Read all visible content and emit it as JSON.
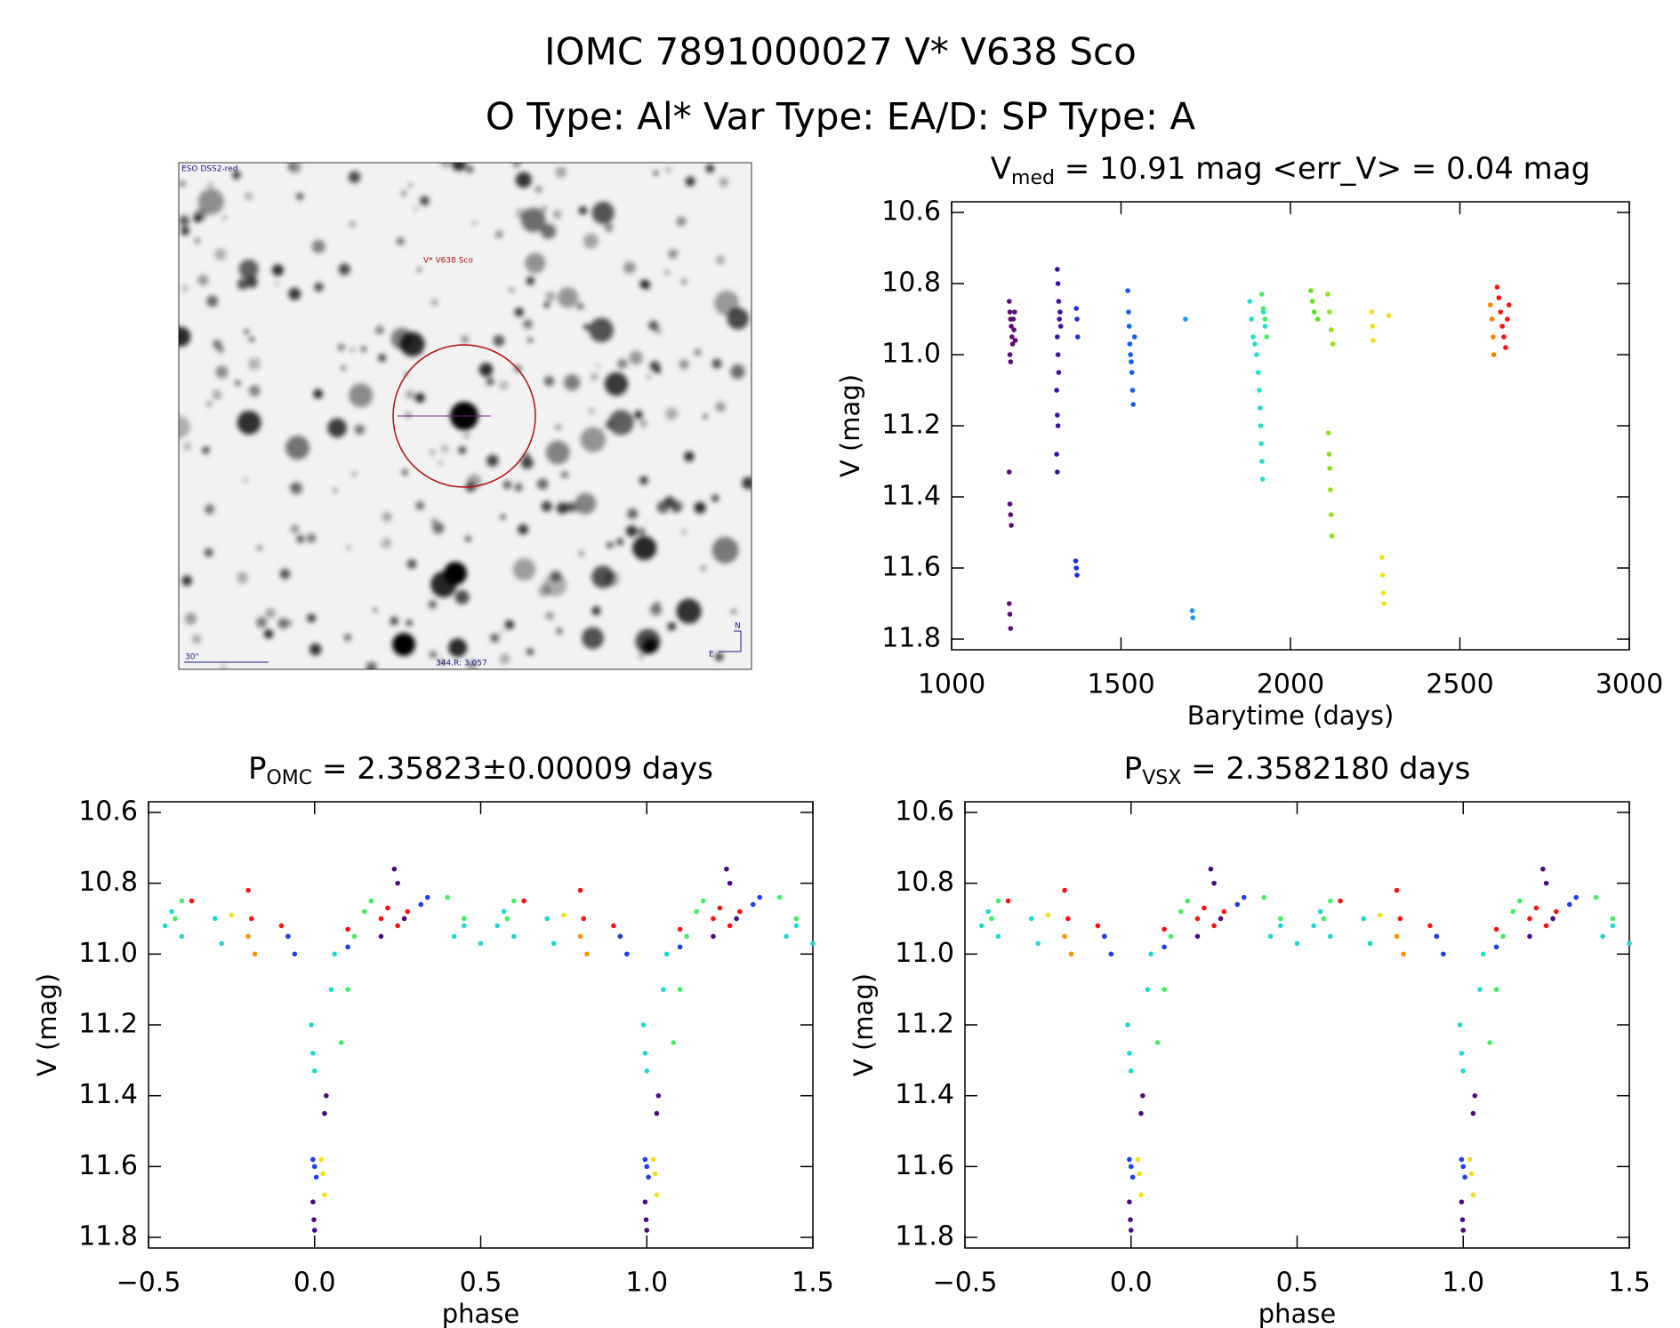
{
  "header": {
    "title": "IOMC 7891000027   V* V638 Sco",
    "subtitle": "O Type: Al*  Var Type: EA/D:  SP Type: A"
  },
  "image": {
    "survey": "ESO DSS2-red",
    "target": "V* V638 Sco",
    "scale": "30\"",
    "coords": "344.R: 3.057",
    "north": "N",
    "east": "E"
  },
  "chart_data": [
    {
      "type": "scatter",
      "title": [
        "V",
        "med",
        " = 10.91 mag <err_V> = 0.04 mag"
      ],
      "xlabel": "Barytime (days)",
      "ylabel": "V (mag)",
      "xlim": [
        1000,
        3000
      ],
      "xticks": [
        1000,
        1500,
        2000,
        2500,
        3000
      ],
      "ylim": [
        10.57,
        11.83
      ],
      "y_reversed": true,
      "yticks": [
        10.6,
        10.8,
        {
          "value": 11,
          "label": "11.0"
        },
        11.2,
        11.4,
        11.6,
        11.8
      ],
      "series": [
        {
          "color": "#5a0a7a",
          "x": [
            1170,
            1172,
            1174,
            1176,
            1178,
            1180,
            1172,
            1182,
            1184,
            1174,
            1170,
            1172,
            1174,
            1176,
            1170,
            1172,
            1174,
            1186,
            1188
          ],
          "y": [
            10.85,
            10.88,
            10.9,
            10.92,
            10.95,
            10.97,
            11.0,
            10.9,
            10.93,
            11.02,
            11.33,
            11.42,
            11.45,
            11.48,
            11.7,
            11.73,
            11.77,
            10.88,
            10.96
          ]
        },
        {
          "color": "#3a10a0",
          "x": [
            1312,
            1314,
            1316,
            1318,
            1312,
            1314,
            1316,
            1310,
            1312,
            1314,
            1310,
            1312,
            1320,
            1322
          ],
          "y": [
            10.76,
            10.8,
            10.85,
            10.9,
            10.95,
            11.0,
            11.05,
            11.1,
            11.17,
            11.2,
            11.28,
            11.33,
            10.88,
            10.92
          ]
        },
        {
          "color": "#1a30e0",
          "x": [
            1368,
            1370,
            1372,
            1366,
            1368,
            1370
          ],
          "y": [
            10.87,
            10.9,
            10.95,
            11.58,
            11.6,
            11.62
          ]
        },
        {
          "color": "#1060f0",
          "x": [
            1520,
            1522,
            1524,
            1526,
            1528,
            1530,
            1532,
            1534,
            1536,
            1540
          ],
          "y": [
            10.82,
            10.88,
            10.92,
            10.97,
            11.0,
            11.02,
            11.05,
            11.1,
            11.14,
            10.95
          ]
        },
        {
          "color": "#1e90ff",
          "x": [
            1690,
            1710,
            1712
          ],
          "y": [
            10.9,
            11.72,
            11.74
          ]
        },
        {
          "color": "#20e0c8",
          "x": [
            1880,
            1885,
            1890,
            1895,
            1900,
            1905,
            1908,
            1910,
            1912,
            1914,
            1916,
            1918,
            1920,
            1925
          ],
          "y": [
            10.85,
            10.9,
            10.95,
            10.97,
            11.0,
            11.05,
            11.1,
            11.15,
            11.2,
            11.25,
            11.3,
            11.35,
            10.88,
            10.92
          ]
        },
        {
          "color": "#40f060",
          "x": [
            1915,
            1920,
            1925,
            1930
          ],
          "y": [
            10.83,
            10.87,
            10.9,
            10.95
          ]
        },
        {
          "color": "#60e020",
          "x": [
            2060,
            2065,
            2070,
            2080
          ],
          "y": [
            10.82,
            10.85,
            10.88,
            10.9
          ]
        },
        {
          "color": "#90e020",
          "x": [
            2110,
            2115,
            2120,
            2125,
            2112,
            2114,
            2116,
            2118,
            2120,
            2122
          ],
          "y": [
            10.83,
            10.88,
            10.93,
            10.97,
            11.22,
            11.28,
            11.32,
            11.38,
            11.45,
            11.51
          ]
        },
        {
          "color": "#f0e020",
          "x": [
            2240,
            2242,
            2244,
            2270,
            2272,
            2274,
            2276,
            2290
          ],
          "y": [
            10.88,
            10.92,
            10.96,
            11.57,
            11.62,
            11.67,
            11.7,
            10.89
          ]
        },
        {
          "color": "#ff8000",
          "x": [
            2590,
            2595,
            2598,
            2600
          ],
          "y": [
            10.86,
            10.9,
            10.95,
            11.0
          ]
        },
        {
          "color": "#ff1010",
          "x": [
            2610,
            2615,
            2620,
            2625,
            2630,
            2635,
            2640,
            2645
          ],
          "y": [
            10.81,
            10.84,
            10.88,
            10.92,
            10.95,
            10.98,
            10.9,
            10.86
          ]
        }
      ]
    },
    {
      "type": "scatter",
      "title": [
        "P",
        "OMC",
        " = 2.35823±0.00009 days"
      ],
      "xlabel": "phase",
      "ylabel": "V (mag)",
      "xlim": [
        -0.5,
        1.5
      ],
      "xticks": [
        {
          "value": -0.5,
          "label": "−0.5"
        },
        {
          "value": 0,
          "label": "0.0"
        },
        0.5,
        {
          "value": 1,
          "label": "1.0"
        },
        1.5
      ],
      "ylim": [
        10.57,
        11.83
      ],
      "y_reversed": true,
      "yticks": [
        10.6,
        10.8,
        {
          "value": 11,
          "label": "11.0"
        },
        11.2,
        11.4,
        11.6,
        11.8
      ],
      "series": [
        {
          "color": "#20d8d0",
          "x": [
            -0.45,
            -0.43,
            -0.4,
            -0.3,
            -0.28,
            -0.01,
            -0.005,
            0,
            0.05,
            0.06,
            0.42,
            0.45,
            0.5,
            0.55,
            0.57,
            0.6,
            0.7,
            0.72,
            0.99,
            0.995,
            1,
            1.05,
            1.06,
            1.42,
            1.45,
            1.5
          ],
          "y": [
            10.92,
            10.88,
            10.95,
            10.9,
            10.97,
            11.2,
            11.28,
            11.33,
            11.1,
            11,
            10.95,
            10.92,
            10.97,
            10.92,
            10.88,
            10.95,
            10.9,
            10.97,
            11.2,
            11.28,
            11.33,
            11.1,
            11,
            10.95,
            10.92,
            10.97
          ]
        },
        {
          "color": "#40f060",
          "x": [
            -0.42,
            -0.4,
            0.08,
            0.1,
            0.12,
            0.15,
            0.17,
            0.4,
            0.45,
            0.58,
            0.6,
            1.08,
            1.1,
            1.12,
            1.15,
            1.17,
            1.4,
            1.45
          ],
          "y": [
            10.9,
            10.85,
            11.25,
            11.1,
            10.95,
            10.88,
            10.85,
            10.84,
            10.9,
            10.9,
            10.85,
            11.25,
            11.1,
            10.95,
            10.88,
            10.85,
            10.84,
            10.9
          ]
        },
        {
          "color": "#ff1010",
          "x": [
            -0.37,
            -0.2,
            -0.19,
            -0.1,
            -0.08,
            0.1,
            0.2,
            0.22,
            0.25,
            0.28,
            0.63,
            0.8,
            0.81,
            0.9,
            0.92,
            1.1,
            1.2,
            1.22,
            1.25,
            1.28
          ],
          "y": [
            10.85,
            10.82,
            10.9,
            10.92,
            10.95,
            10.93,
            10.9,
            10.87,
            10.92,
            10.88,
            10.85,
            10.82,
            10.9,
            10.92,
            10.95,
            10.93,
            10.9,
            10.87,
            10.92,
            10.88
          ]
        },
        {
          "color": "#1a40f0",
          "x": [
            -0.08,
            -0.06,
            -0.005,
            0,
            0.005,
            0.1,
            0.32,
            0.34,
            0.92,
            0.94,
            0.995,
            1,
            1.005,
            1.1,
            1.32,
            1.34
          ],
          "y": [
            10.95,
            11,
            11.58,
            11.6,
            11.63,
            10.98,
            10.86,
            10.84,
            10.95,
            11,
            11.58,
            11.6,
            11.63,
            10.98,
            10.86,
            10.84
          ]
        },
        {
          "color": "#4a0a80",
          "x": [
            -0.005,
            -0.002,
            0,
            0.03,
            0.035,
            0.2,
            0.24,
            0.25,
            0.27,
            0.995,
            0.998,
            1,
            1.03,
            1.035,
            1.2,
            1.24,
            1.25,
            1.27
          ],
          "y": [
            11.7,
            11.75,
            11.78,
            11.45,
            11.4,
            10.95,
            10.76,
            10.8,
            10.9,
            11.7,
            11.75,
            11.78,
            11.45,
            11.4,
            10.95,
            10.76,
            10.8,
            10.9
          ]
        },
        {
          "color": "#f0e020",
          "x": [
            0.02,
            0.025,
            0.03,
            -0.25,
            1.02,
            1.025,
            1.03,
            0.75
          ],
          "y": [
            11.58,
            11.62,
            11.68,
            10.89,
            11.58,
            11.62,
            11.68,
            10.89
          ]
        },
        {
          "color": "#ff9000",
          "x": [
            -0.2,
            -0.18,
            0.8,
            0.82
          ],
          "y": [
            10.95,
            11,
            10.95,
            11
          ]
        }
      ]
    },
    {
      "type": "scatter",
      "title": [
        "P",
        "VSX",
        " = 2.3582180 days"
      ],
      "xlabel": "phase",
      "ylabel": "V (mag)",
      "xlim": [
        -0.5,
        1.5
      ],
      "xticks": [
        {
          "value": -0.5,
          "label": "−0.5"
        },
        {
          "value": 0,
          "label": "0.0"
        },
        0.5,
        {
          "value": 1,
          "label": "1.0"
        },
        1.5
      ],
      "ylim": [
        10.57,
        11.83
      ],
      "y_reversed": true,
      "yticks": [
        10.6,
        10.8,
        {
          "value": 11,
          "label": "11.0"
        },
        11.2,
        11.4,
        11.6,
        11.8
      ],
      "series": [
        {
          "color": "#20d8d0",
          "x": [
            -0.45,
            -0.43,
            -0.4,
            -0.3,
            -0.28,
            -0.01,
            -0.005,
            0,
            0.05,
            0.06,
            0.42,
            0.45,
            0.5,
            0.55,
            0.57,
            0.6,
            0.7,
            0.72,
            0.99,
            0.995,
            1,
            1.05,
            1.06,
            1.42,
            1.45,
            1.5
          ],
          "y": [
            10.92,
            10.88,
            10.95,
            10.9,
            10.97,
            11.2,
            11.28,
            11.33,
            11.1,
            11,
            10.95,
            10.92,
            10.97,
            10.92,
            10.88,
            10.95,
            10.9,
            10.97,
            11.2,
            11.28,
            11.33,
            11.1,
            11,
            10.95,
            10.92,
            10.97
          ]
        },
        {
          "color": "#40f060",
          "x": [
            -0.42,
            -0.4,
            0.08,
            0.1,
            0.12,
            0.15,
            0.17,
            0.4,
            0.45,
            0.58,
            0.6,
            1.08,
            1.1,
            1.12,
            1.15,
            1.17,
            1.4,
            1.45
          ],
          "y": [
            10.9,
            10.85,
            11.25,
            11.1,
            10.95,
            10.88,
            10.85,
            10.84,
            10.9,
            10.9,
            10.85,
            11.25,
            11.1,
            10.95,
            10.88,
            10.85,
            10.84,
            10.9
          ]
        },
        {
          "color": "#ff1010",
          "x": [
            -0.37,
            -0.2,
            -0.19,
            -0.1,
            -0.08,
            0.1,
            0.2,
            0.22,
            0.25,
            0.28,
            0.63,
            0.8,
            0.81,
            0.9,
            0.92,
            1.1,
            1.2,
            1.22,
            1.25,
            1.28
          ],
          "y": [
            10.85,
            10.82,
            10.9,
            10.92,
            10.95,
            10.93,
            10.9,
            10.87,
            10.92,
            10.88,
            10.85,
            10.82,
            10.9,
            10.92,
            10.95,
            10.93,
            10.9,
            10.87,
            10.92,
            10.88
          ]
        },
        {
          "color": "#1a40f0",
          "x": [
            -0.08,
            -0.06,
            -0.005,
            0,
            0.005,
            0.1,
            0.32,
            0.34,
            0.92,
            0.94,
            0.995,
            1,
            1.005,
            1.1,
            1.32,
            1.34
          ],
          "y": [
            10.95,
            11,
            11.58,
            11.6,
            11.63,
            10.98,
            10.86,
            10.84,
            10.95,
            11,
            11.58,
            11.6,
            11.63,
            10.98,
            10.86,
            10.84
          ]
        },
        {
          "color": "#4a0a80",
          "x": [
            -0.005,
            -0.002,
            0,
            0.03,
            0.035,
            0.2,
            0.24,
            0.25,
            0.27,
            0.995,
            0.998,
            1,
            1.03,
            1.035,
            1.2,
            1.24,
            1.25,
            1.27
          ],
          "y": [
            11.7,
            11.75,
            11.78,
            11.45,
            11.4,
            10.95,
            10.76,
            10.8,
            10.9,
            11.7,
            11.75,
            11.78,
            11.45,
            11.4,
            10.95,
            10.76,
            10.8,
            10.9
          ]
        },
        {
          "color": "#f0e020",
          "x": [
            0.02,
            0.025,
            0.03,
            -0.25,
            1.02,
            1.025,
            1.03,
            0.75
          ],
          "y": [
            11.58,
            11.62,
            11.68,
            10.89,
            11.58,
            11.62,
            11.68,
            10.89
          ]
        },
        {
          "color": "#ff9000",
          "x": [
            -0.2,
            -0.18,
            0.8,
            0.82
          ],
          "y": [
            10.95,
            11,
            10.95,
            11
          ]
        }
      ]
    }
  ]
}
